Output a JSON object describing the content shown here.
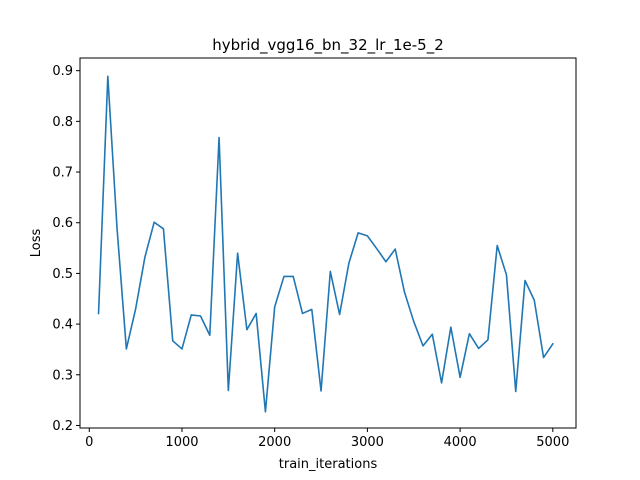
{
  "chart_data": {
    "type": "line",
    "title": "hybrid_vgg16_bn_32_lr_1e-5_2",
    "xlabel": "train_iterations",
    "ylabel": "Loss",
    "xlim": [
      -100,
      5250
    ],
    "ylim": [
      0.195,
      0.925
    ],
    "xticks": [
      0,
      1000,
      2000,
      3000,
      4000,
      5000
    ],
    "yticks": [
      0.2,
      0.3,
      0.4,
      0.5,
      0.6,
      0.7,
      0.8,
      0.9
    ],
    "xtick_labels": [
      "0",
      "1000",
      "2000",
      "3000",
      "4000",
      "5000"
    ],
    "ytick_labels": [
      "0.2",
      "0.3",
      "0.4",
      "0.5",
      "0.6",
      "0.7",
      "0.8",
      "0.9"
    ],
    "grid": false,
    "color": "#1f77b4",
    "series": [
      {
        "name": "Loss",
        "x": [
          100,
          200,
          300,
          400,
          500,
          600,
          700,
          800,
          900,
          1000,
          1100,
          1200,
          1300,
          1400,
          1500,
          1600,
          1700,
          1800,
          1900,
          2000,
          2100,
          2200,
          2300,
          2400,
          2500,
          2600,
          2700,
          2800,
          2900,
          3000,
          3100,
          3200,
          3300,
          3400,
          3500,
          3600,
          3700,
          3800,
          3900,
          4000,
          4100,
          4200,
          4300,
          4400,
          4500,
          4600,
          4700,
          4800,
          4900,
          5000
        ],
        "values": [
          0.421,
          0.889,
          0.588,
          0.351,
          0.43,
          0.532,
          0.601,
          0.588,
          0.367,
          0.351,
          0.418,
          0.416,
          0.378,
          0.768,
          0.269,
          0.54,
          0.389,
          0.421,
          0.227,
          0.434,
          0.494,
          0.494,
          0.421,
          0.429,
          0.268,
          0.504,
          0.419,
          0.52,
          0.58,
          0.574,
          0.549,
          0.523,
          0.548,
          0.463,
          0.405,
          0.357,
          0.38,
          0.284,
          0.394,
          0.295,
          0.381,
          0.352,
          0.369,
          0.555,
          0.497,
          0.267,
          0.486,
          0.447,
          0.334,
          0.361
        ]
      }
    ]
  }
}
